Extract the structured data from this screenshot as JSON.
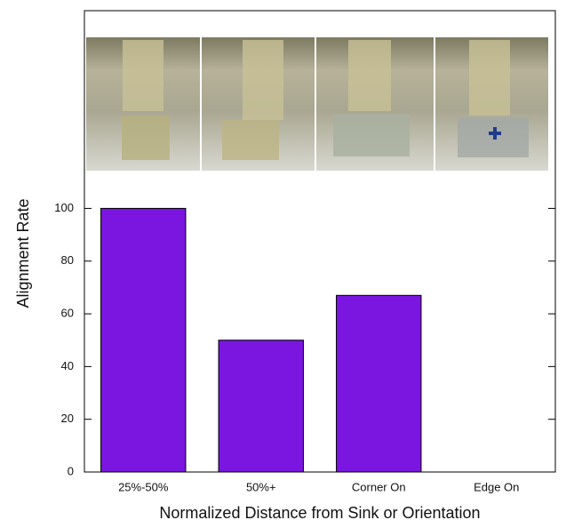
{
  "chart_data": {
    "type": "bar",
    "x_label": "Normalized Distance from Sink or Orientation",
    "y_label": "Alignment Rate",
    "categories": [
      "25%-50%",
      "50%+",
      "Corner On",
      "Edge On"
    ],
    "values": [
      100,
      50,
      67,
      0
    ],
    "color": "#7a16e0",
    "ylim": [
      0,
      175
    ],
    "yticks": [
      0,
      20,
      40,
      60,
      80,
      100
    ]
  }
}
